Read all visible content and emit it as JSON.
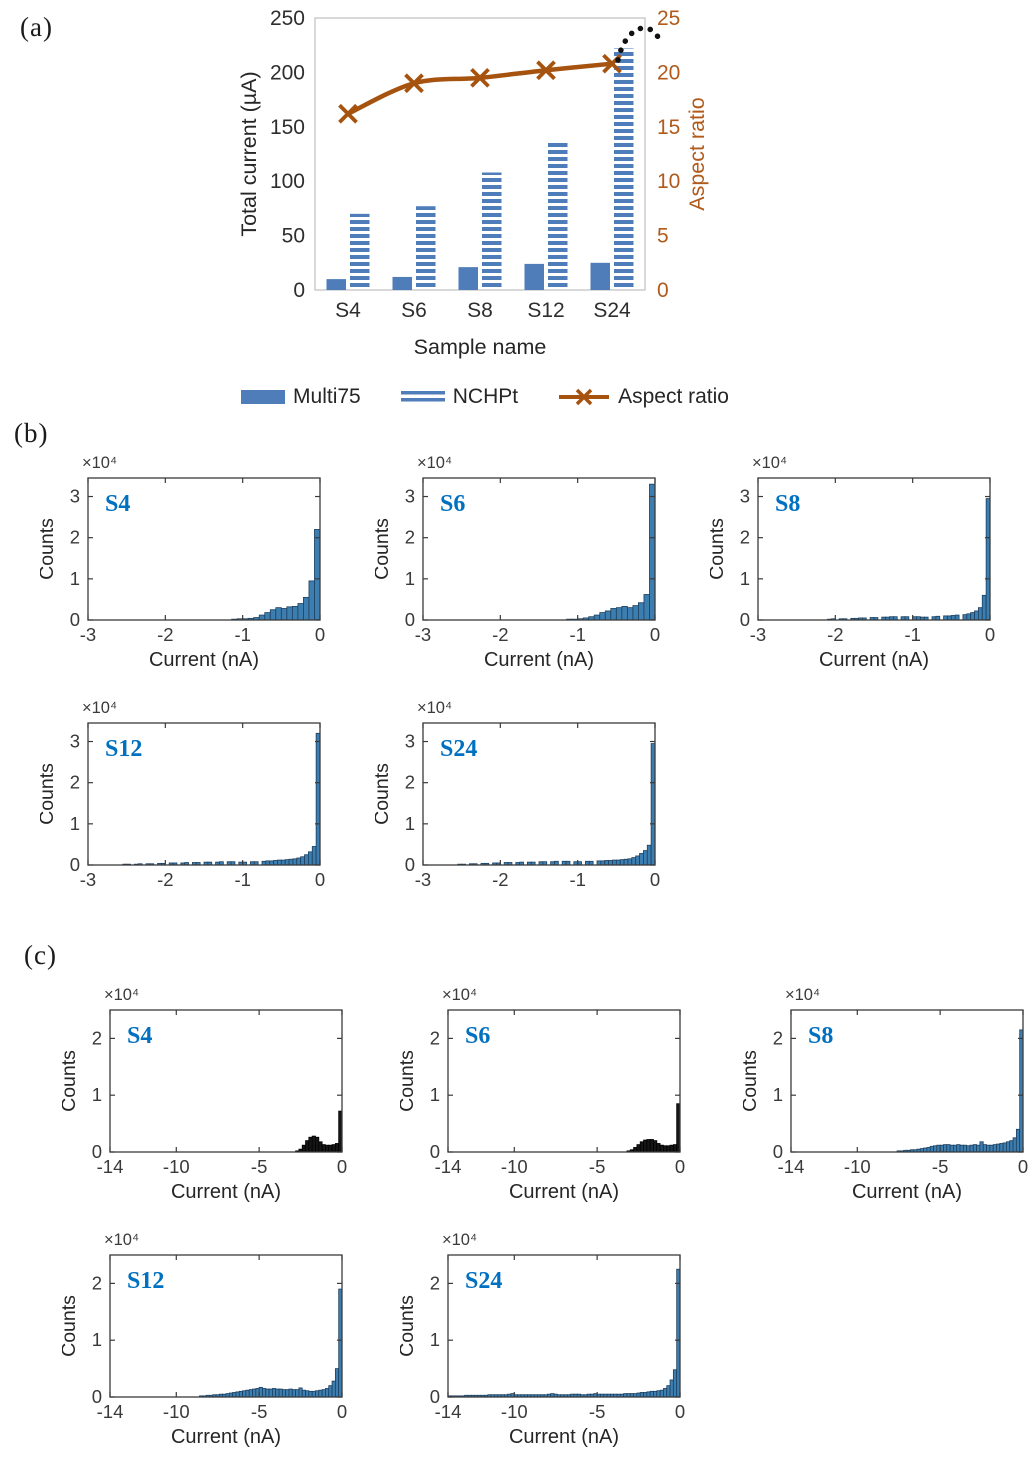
{
  "panels": {
    "a": {
      "letter": "(a)"
    },
    "b": {
      "letter": "(b)"
    },
    "c": {
      "letter": "(c)"
    }
  },
  "legend": {
    "items": [
      {
        "label": "Multi75",
        "swatch": "solid-bar"
      },
      {
        "label": "NCHPt",
        "swatch": "striped-lines"
      },
      {
        "label": "Aspect ratio",
        "swatch": "line-x-marker"
      }
    ]
  },
  "colors": {
    "bar_blue": "#4e7dba",
    "hist_fill": "#3d7eb0",
    "hist_edge": "#1d3f5e",
    "black_fill": "#161616",
    "black_edge": "#000000",
    "line_brown": "#a6530f",
    "brown_text": "#b05a1b",
    "sample_label_blue": "#0070c0",
    "axis_text": "#3c3c3c",
    "frame_gray": "#c9c9c9",
    "annotation_black": "#111111"
  },
  "chart_data": [
    {
      "id": "a",
      "type": "bar-line-combo",
      "categories": [
        "S4",
        "S6",
        "S8",
        "S12",
        "S24"
      ],
      "series": [
        {
          "name": "Multi75",
          "kind": "bar-solid",
          "axis": "left",
          "values": [
            10,
            12,
            21,
            24,
            25
          ]
        },
        {
          "name": "NCHPt",
          "kind": "bar-striped",
          "axis": "left",
          "values": [
            70,
            77,
            108,
            137,
            222
          ]
        },
        {
          "name": "Aspect ratio",
          "kind": "line-x",
          "axis": "right",
          "values": [
            16.2,
            19.0,
            19.5,
            20.2,
            20.8
          ]
        }
      ],
      "xlabel": "Sample name",
      "ylabel_left": "Total current (µA)",
      "ylabel_right": "Aspect ratio",
      "ylim_left": [
        0,
        250
      ],
      "left_ticks": [
        0,
        50,
        100,
        150,
        200,
        250
      ],
      "ylim_right": [
        0,
        25
      ],
      "right_ticks": [
        0,
        5,
        10,
        15,
        20,
        25
      ],
      "annotation": "dotted-arc-above-S24",
      "grid": false,
      "legend_position": "bottom"
    },
    {
      "id": "b-s4",
      "panel": "b",
      "type": "bar",
      "label": "S4",
      "xlabel": "Current (nA)",
      "ylabel": "Counts",
      "exponent": "×10⁴",
      "xlim": [
        -3,
        0
      ],
      "xticks": [
        -3,
        -2,
        -1,
        0
      ],
      "ymax": 3.45,
      "yticks": [
        0,
        1,
        2,
        3
      ],
      "bin_width": 0.071,
      "bar_color": "#3d7eb0",
      "edge_color": "#1d3f5e",
      "values": [
        0,
        0,
        0,
        0,
        0,
        0,
        0,
        0,
        0,
        0,
        0,
        0,
        0,
        0,
        0,
        0,
        0,
        0,
        0,
        0,
        0,
        0,
        0,
        0,
        0,
        0,
        0.02,
        0.03,
        0.03,
        0.04,
        0.06,
        0.12,
        0.18,
        0.25,
        0.3,
        0.28,
        0.32,
        0.33,
        0.4,
        0.55,
        0.95,
        2.2
      ]
    },
    {
      "id": "b-s6",
      "panel": "b",
      "type": "bar",
      "label": "S6",
      "xlabel": "Current (nA)",
      "ylabel": "Counts",
      "exponent": "×10⁴",
      "xlim": [
        -3,
        0
      ],
      "xticks": [
        -3,
        -2,
        -1,
        0
      ],
      "ymax": 3.45,
      "yticks": [
        0,
        1,
        2,
        3
      ],
      "bin_width": 0.071,
      "bar_color": "#3d7eb0",
      "edge_color": "#1d3f5e",
      "values": [
        0,
        0,
        0,
        0,
        0,
        0,
        0,
        0,
        0,
        0,
        0,
        0,
        0,
        0,
        0,
        0,
        0,
        0,
        0,
        0,
        0,
        0,
        0,
        0,
        0,
        0,
        0.02,
        0.02,
        0.03,
        0.05,
        0.08,
        0.12,
        0.18,
        0.22,
        0.28,
        0.3,
        0.33,
        0.3,
        0.35,
        0.42,
        0.62,
        3.3
      ]
    },
    {
      "id": "b-s8",
      "panel": "b",
      "type": "bar",
      "label": "S8",
      "xlabel": "Current (nA)",
      "ylabel": "Counts",
      "exponent": "×10⁴",
      "xlim": [
        -3,
        0
      ],
      "xticks": [
        -3,
        -2,
        -1,
        0
      ],
      "ymax": 3.45,
      "yticks": [
        0,
        1,
        2,
        3
      ],
      "bin_width": 0.05,
      "bar_color": "#3d7eb0",
      "edge_color": "#1d3f5e",
      "values": [
        0,
        0,
        0,
        0,
        0,
        0,
        0,
        0,
        0,
        0,
        0,
        0,
        0,
        0,
        0,
        0,
        0,
        0,
        0.02,
        0.03,
        0,
        0.03,
        0.03,
        0,
        0.04,
        0.04,
        0.05,
        0.05,
        0,
        0.06,
        0.06,
        0,
        0.07,
        0.07,
        0.08,
        0.08,
        0,
        0.08,
        0.08,
        0,
        0.08,
        0.08,
        0.07,
        0.07,
        0,
        0.08,
        0.09,
        0,
        0.1,
        0.1,
        0.11,
        0.12,
        0,
        0.13,
        0.15,
        0.18,
        0.22,
        0.3,
        0.6,
        2.95
      ]
    },
    {
      "id": "b-s12",
      "panel": "b",
      "type": "bar",
      "label": "S12",
      "xlabel": "",
      "ylabel": "Counts",
      "exponent": "×10⁴",
      "xlim": [
        -3,
        0
      ],
      "xticks": [
        -3,
        -2,
        -1,
        0
      ],
      "ymax": 3.45,
      "yticks": [
        0,
        1,
        2,
        3
      ],
      "bin_width": 0.05,
      "bar_color": "#3d7eb0",
      "edge_color": "#1d3f5e",
      "values": [
        0,
        0,
        0,
        0,
        0,
        0,
        0,
        0,
        0,
        0.02,
        0.02,
        0,
        0.02,
        0.03,
        0,
        0.03,
        0.03,
        0,
        0.04,
        0.04,
        0,
        0.05,
        0.05,
        0,
        0.05,
        0.06,
        0,
        0.06,
        0.06,
        0,
        0.07,
        0.07,
        0,
        0.07,
        0.08,
        0,
        0.08,
        0.08,
        0,
        0.07,
        0.07,
        0,
        0.08,
        0.08,
        0,
        0.09,
        0.1,
        0.1,
        0.11,
        0.12,
        0.12,
        0.13,
        0.14,
        0.15,
        0.17,
        0.2,
        0.25,
        0.32,
        0.45,
        3.2
      ]
    },
    {
      "id": "b-s24",
      "panel": "b",
      "type": "bar",
      "label": "S24",
      "xlabel": "",
      "ylabel": "Counts",
      "exponent": "×10⁴",
      "xlim": [
        -3,
        0
      ],
      "xticks": [
        -3,
        -2,
        -1,
        0
      ],
      "ymax": 3.45,
      "yticks": [
        0,
        1,
        2,
        3
      ],
      "bin_width": 0.05,
      "bar_color": "#3d7eb0",
      "edge_color": "#1d3f5e",
      "values": [
        0,
        0,
        0,
        0,
        0,
        0,
        0,
        0,
        0,
        0.02,
        0.02,
        0,
        0.03,
        0.03,
        0,
        0.04,
        0.04,
        0,
        0.05,
        0.05,
        0,
        0.06,
        0.06,
        0,
        0.06,
        0.07,
        0,
        0.07,
        0.07,
        0,
        0.08,
        0.08,
        0,
        0.08,
        0.09,
        0,
        0.09,
        0.09,
        0,
        0.08,
        0.08,
        0,
        0.09,
        0.09,
        0,
        0.1,
        0.1,
        0.11,
        0.11,
        0.12,
        0.12,
        0.13,
        0.14,
        0.15,
        0.18,
        0.22,
        0.28,
        0.35,
        0.48,
        2.95
      ]
    },
    {
      "id": "c-s4",
      "panel": "c",
      "type": "bar",
      "label": "S4",
      "xlabel": "Current (nA)",
      "ylabel": "Counts",
      "exponent": "×10⁴",
      "xlim": [
        -14,
        0
      ],
      "xticks": [
        -14,
        -10,
        -5,
        0
      ],
      "ymax": 2.5,
      "yticks": [
        0,
        1,
        2
      ],
      "bin_width": 0.2,
      "bar_color": "#161616",
      "edge_color": "#000000",
      "values": [
        0,
        0,
        0,
        0,
        0,
        0,
        0,
        0,
        0,
        0,
        0,
        0,
        0,
        0,
        0,
        0,
        0,
        0,
        0,
        0,
        0,
        0,
        0,
        0,
        0,
        0,
        0,
        0,
        0,
        0,
        0,
        0,
        0,
        0,
        0,
        0,
        0,
        0,
        0,
        0,
        0,
        0,
        0,
        0,
        0,
        0,
        0,
        0,
        0,
        0,
        0,
        0,
        0,
        0,
        0,
        0,
        0.02,
        0.05,
        0.12,
        0.2,
        0.26,
        0.28,
        0.26,
        0.18,
        0.13,
        0.12,
        0.12,
        0.13,
        0.15,
        0.72
      ]
    },
    {
      "id": "c-s6",
      "panel": "c",
      "type": "bar",
      "label": "S6",
      "xlabel": "Current (nA)",
      "ylabel": "Counts",
      "exponent": "×10⁴",
      "xlim": [
        -14,
        0
      ],
      "xticks": [
        -14,
        -10,
        -5,
        0
      ],
      "ymax": 2.5,
      "yticks": [
        0,
        1,
        2
      ],
      "bin_width": 0.2,
      "bar_color": "#161616",
      "edge_color": "#000000",
      "values": [
        0,
        0,
        0,
        0,
        0,
        0,
        0,
        0,
        0,
        0,
        0,
        0,
        0,
        0,
        0,
        0,
        0,
        0,
        0,
        0,
        0,
        0,
        0,
        0,
        0,
        0,
        0,
        0,
        0,
        0,
        0,
        0,
        0,
        0,
        0,
        0,
        0,
        0,
        0,
        0,
        0,
        0,
        0,
        0,
        0,
        0,
        0,
        0,
        0,
        0,
        0,
        0,
        0,
        0,
        0.02,
        0.04,
        0.08,
        0.13,
        0.18,
        0.21,
        0.22,
        0.22,
        0.2,
        0.15,
        0.12,
        0.11,
        0.11,
        0.12,
        0.13,
        0.85
      ]
    },
    {
      "id": "c-s8",
      "panel": "c",
      "type": "bar",
      "label": "S8",
      "xlabel": "Current (nA)",
      "ylabel": "Counts",
      "exponent": "×10⁴",
      "xlim": [
        -14,
        0
      ],
      "xticks": [
        -14,
        -10,
        -5,
        0
      ],
      "ymax": 2.5,
      "yticks": [
        0,
        1,
        2
      ],
      "bin_width": 0.2,
      "bar_color": "#3d7eb0",
      "edge_color": "#1d3f5e",
      "values": [
        0,
        0,
        0,
        0,
        0,
        0,
        0,
        0,
        0,
        0,
        0,
        0,
        0,
        0,
        0,
        0,
        0,
        0,
        0,
        0,
        0,
        0,
        0,
        0,
        0,
        0,
        0,
        0,
        0,
        0,
        0,
        0,
        0.02,
        0.02,
        0.03,
        0.03,
        0.04,
        0.04,
        0.05,
        0.06,
        0.07,
        0.08,
        0.1,
        0.11,
        0.12,
        0.12,
        0.13,
        0.13,
        0.12,
        0.12,
        0.13,
        0.12,
        0.12,
        0.11,
        0.12,
        0.13,
        0.12,
        0.18,
        0.13,
        0.12,
        0.12,
        0.13,
        0.14,
        0.15,
        0.16,
        0.18,
        0.2,
        0.25,
        0.4,
        2.15
      ]
    },
    {
      "id": "c-s12",
      "panel": "c",
      "type": "bar",
      "label": "S12",
      "xlabel": "Current (nA)",
      "ylabel": "Counts",
      "exponent": "×10⁴",
      "xlim": [
        -14,
        0
      ],
      "xticks": [
        -14,
        -10,
        -5,
        0
      ],
      "ymax": 2.5,
      "yticks": [
        0,
        1,
        2
      ],
      "bin_width": 0.2,
      "bar_color": "#3d7eb0",
      "edge_color": "#1d3f5e",
      "values": [
        0,
        0,
        0,
        0,
        0,
        0,
        0,
        0,
        0,
        0,
        0,
        0,
        0,
        0,
        0,
        0,
        0,
        0,
        0,
        0,
        0,
        0,
        0,
        0,
        0,
        0,
        0,
        0.02,
        0.02,
        0.03,
        0.03,
        0.04,
        0.04,
        0.05,
        0.05,
        0.06,
        0.07,
        0.08,
        0.09,
        0.1,
        0.11,
        0.12,
        0.13,
        0.14,
        0.15,
        0.17,
        0.15,
        0.14,
        0.14,
        0.15,
        0.14,
        0.14,
        0.13,
        0.13,
        0.14,
        0.13,
        0.13,
        0.16,
        0.12,
        0.11,
        0.1,
        0.1,
        0.11,
        0.12,
        0.13,
        0.15,
        0.2,
        0.28,
        0.5,
        1.9
      ]
    },
    {
      "id": "c-s24",
      "panel": "c",
      "type": "bar",
      "label": "S24",
      "xlabel": "Current (nA)",
      "ylabel": "Counts",
      "exponent": "×10⁴",
      "xlim": [
        -14,
        0
      ],
      "xticks": [
        -14,
        -10,
        -5,
        0
      ],
      "ymax": 2.5,
      "yticks": [
        0,
        1,
        2
      ],
      "bin_width": 0.2,
      "bar_color": "#3d7eb0",
      "edge_color": "#1d3f5e",
      "values": [
        0.02,
        0.02,
        0.02,
        0.02,
        0.02,
        0.03,
        0.03,
        0.03,
        0.03,
        0.03,
        0.03,
        0.03,
        0.04,
        0.04,
        0.04,
        0.04,
        0.04,
        0.04,
        0.05,
        0.06,
        0.04,
        0.04,
        0.04,
        0.04,
        0.04,
        0.04,
        0.04,
        0.04,
        0.04,
        0.04,
        0.05,
        0.06,
        0.05,
        0.04,
        0.04,
        0.04,
        0.04,
        0.05,
        0.05,
        0.05,
        0.04,
        0.04,
        0.05,
        0.05,
        0.06,
        0.05,
        0.05,
        0.05,
        0.05,
        0.05,
        0.05,
        0.05,
        0.05,
        0.06,
        0.06,
        0.06,
        0.06,
        0.07,
        0.08,
        0.08,
        0.09,
        0.1,
        0.1,
        0.11,
        0.12,
        0.15,
        0.2,
        0.3,
        0.48,
        2.25
      ]
    }
  ]
}
